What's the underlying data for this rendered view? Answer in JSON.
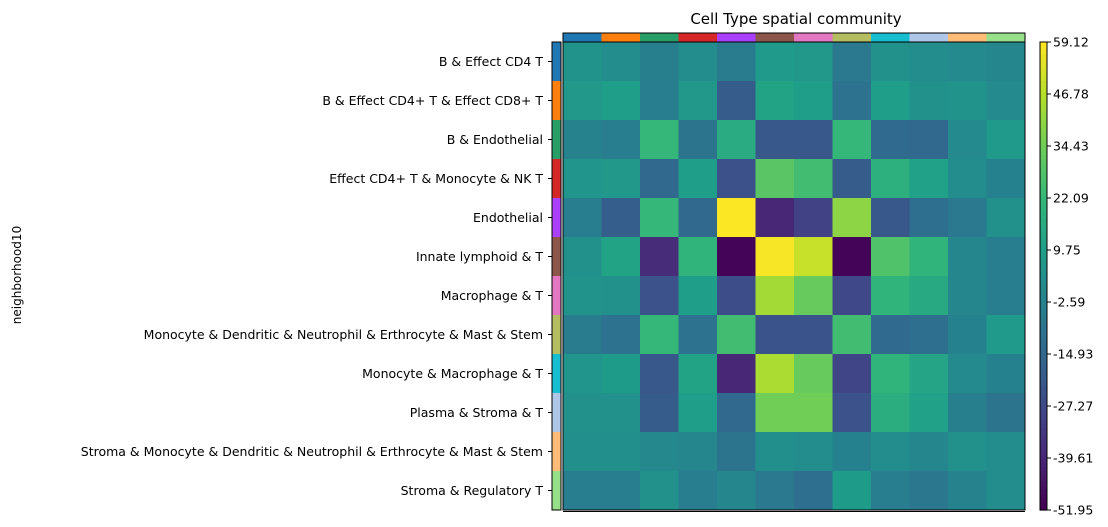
{
  "chart_data": {
    "type": "heatmap",
    "title": "Cell Type spatial community",
    "ylabel": "neighborhood10",
    "xlabel": "",
    "rows": [
      "B & Effect CD4 T",
      "B & Effect CD4+ T & Effect CD8+ T",
      "B & Endothelial",
      "Effect CD4+ T & Monocyte & NK T",
      "Endothelial",
      "Innate lymphoid & T",
      "Macrophage & T",
      "Monocyte & Dendritic & Neutrophil & Erthrocyte & Mast & Stem",
      "Monocyte & Macrophage & T",
      "Plasma & Stroma & T",
      "Stroma & Monocyte & Dendritic & Neutrophil & Erthrocyte & Mast & Stem",
      "Stroma & Regulatory T"
    ],
    "row_colors": [
      "#1f77b4",
      "#ff7f0e",
      "#279e68",
      "#d62728",
      "#aa40fc",
      "#8c564b",
      "#e377c2",
      "#b5bd61",
      "#17becf",
      "#aec7e8",
      "#ffbb78",
      "#98df8a"
    ],
    "column_colors": [
      "#1f77b4",
      "#ff7f0e",
      "#279e68",
      "#d62728",
      "#aa40fc",
      "#8c564b",
      "#e377c2",
      "#b5bd61",
      "#17becf",
      "#aec7e8",
      "#ffbb78",
      "#98df8a"
    ],
    "values": [
      [
        5,
        2,
        -4,
        2,
        -6,
        8,
        7,
        -7,
        4,
        2,
        1,
        -1
      ],
      [
        7,
        10,
        -5,
        7,
        -20,
        12,
        10,
        -10,
        10,
        4,
        5,
        1
      ],
      [
        -2,
        -5,
        22,
        -9,
        16,
        -22,
        -22,
        22,
        -14,
        -15,
        1,
        8
      ],
      [
        6,
        7,
        -15,
        10,
        -25,
        30,
        25,
        -20,
        18,
        11,
        2,
        -3
      ],
      [
        -5,
        -19,
        22,
        -15,
        59,
        -40,
        -30,
        40,
        -22,
        -12,
        -7,
        4
      ],
      [
        4,
        12,
        -38,
        20,
        -51,
        58,
        50,
        -51,
        28,
        20,
        -1,
        -5
      ],
      [
        5,
        4,
        -24,
        10,
        -26,
        44,
        33,
        -28,
        20,
        15,
        -1,
        -5
      ],
      [
        -6,
        -10,
        22,
        -10,
        25,
        -23,
        -23,
        25,
        -14,
        -12,
        -3,
        8
      ],
      [
        6,
        9,
        -22,
        12,
        -40,
        45,
        33,
        -29,
        20,
        13,
        1,
        -3
      ],
      [
        4,
        4,
        -20,
        10,
        -15,
        35,
        35,
        -24,
        17,
        11,
        -4,
        -9
      ],
      [
        3,
        3,
        0,
        -1,
        -9,
        3,
        2,
        -3,
        2,
        -1,
        4,
        2
      ],
      [
        -5,
        -5,
        4,
        -5,
        -1,
        -7,
        -12,
        9,
        -5,
        -8,
        -2,
        2
      ]
    ],
    "colorbar": {
      "min": -51.95,
      "max": 59.12,
      "tick_labels": [
        "59.12",
        "46.78",
        "34.43",
        "22.09",
        "9.75",
        "-2.59",
        "-14.93",
        "-27.27",
        "-39.61",
        "-51.95"
      ]
    }
  }
}
